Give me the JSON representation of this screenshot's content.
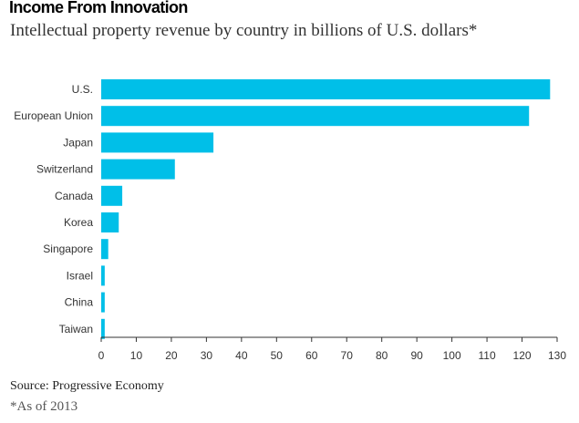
{
  "header": {
    "title": "Income From Innovation",
    "subtitle": "Intellectual property revenue by country in billions of U.S. dollars*"
  },
  "footer": {
    "source": "Source: Progressive Economy",
    "note": "*As of 2013"
  },
  "colors": {
    "bar": "#00bfe8",
    "axis": "#333333",
    "tick_text": "#333333"
  },
  "chart_data": {
    "type": "bar",
    "orientation": "horizontal",
    "title": "Income From Innovation",
    "subtitle": "Intellectual property revenue by country in billions of U.S. dollars*",
    "xlabel": "",
    "ylabel": "",
    "xlim": [
      0,
      130
    ],
    "xticks": [
      0,
      10,
      20,
      30,
      40,
      50,
      60,
      70,
      80,
      90,
      100,
      110,
      120,
      130
    ],
    "grid": false,
    "legend": "none",
    "categories": [
      "U.S.",
      "European Union",
      "Japan",
      "Switzerland",
      "Canada",
      "Korea",
      "Singapore",
      "Israel",
      "China",
      "Taiwan"
    ],
    "values": [
      128,
      122,
      32,
      21,
      6,
      5,
      2,
      1,
      1,
      1
    ]
  }
}
